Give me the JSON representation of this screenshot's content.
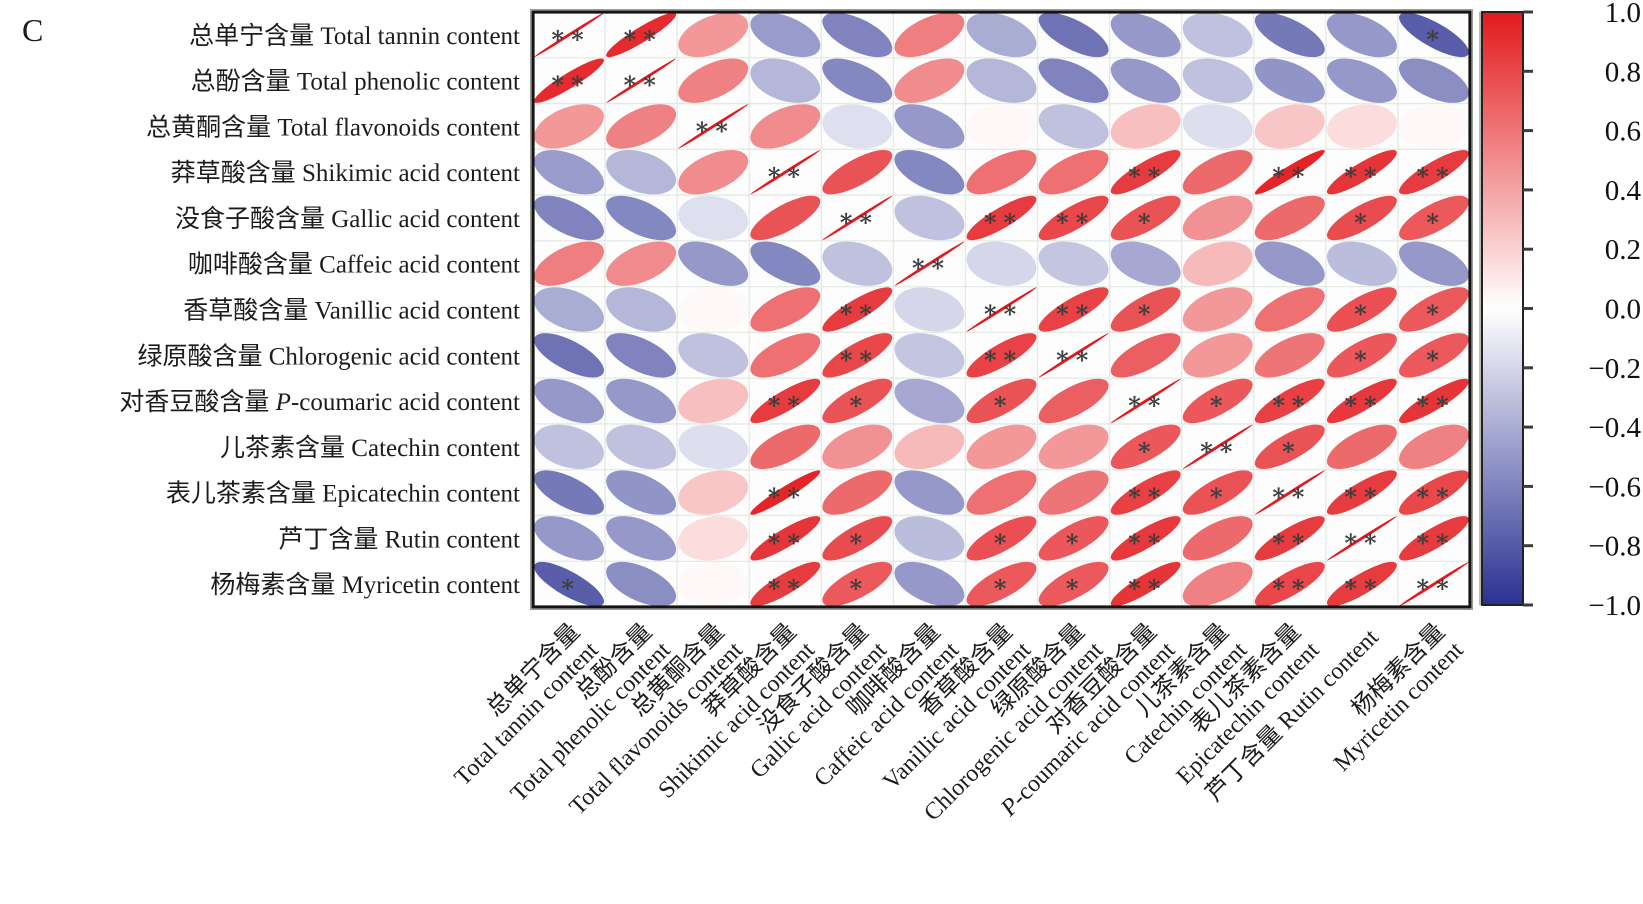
{
  "panel_label": "C",
  "chart_data": {
    "type": "heatmap",
    "subtype": "correlation-ellipse-matrix",
    "title": "",
    "legend_position": "right-colorbar",
    "grid": true,
    "variables": [
      {
        "cn": "总单宁含量",
        "en": "Total tannin content"
      },
      {
        "cn": "总酚含量",
        "en": "Total phenolic content"
      },
      {
        "cn": "总黄酮含量",
        "en": "Total flavonoids content"
      },
      {
        "cn": "莽草酸含量",
        "en": "Shikimic acid content"
      },
      {
        "cn": "没食子酸含量",
        "en": "Gallic acid content"
      },
      {
        "cn": "咖啡酸含量",
        "en": "Caffeic acid content"
      },
      {
        "cn": "香草酸含量",
        "en": "Vanillic acid content"
      },
      {
        "cn": "绿原酸含量",
        "en": "Chlorogenic acid content"
      },
      {
        "cn": "对香豆酸含量",
        "en": "P-coumaric acid content"
      },
      {
        "cn": "儿茶素含量",
        "en": "Catechin content"
      },
      {
        "cn": "表儿茶素含量",
        "en": "Epicatechin content"
      },
      {
        "cn": "芦丁含量",
        "en": "Rutin content",
        "single_line": true
      },
      {
        "cn": "杨梅素含量",
        "en": "Myricetin content"
      }
    ],
    "matrix": [
      [
        1.0,
        0.92,
        0.45,
        -0.48,
        -0.6,
        0.56,
        -0.4,
        -0.68,
        -0.5,
        -0.3,
        -0.65,
        -0.5,
        -0.78
      ],
      [
        0.92,
        1.0,
        0.55,
        -0.35,
        -0.58,
        0.5,
        -0.35,
        -0.6,
        -0.5,
        -0.3,
        -0.52,
        -0.5,
        -0.55
      ],
      [
        0.45,
        0.55,
        1.0,
        0.5,
        -0.15,
        -0.5,
        0.03,
        -0.3,
        0.28,
        -0.16,
        0.25,
        0.15,
        0.03
      ],
      [
        -0.48,
        -0.35,
        0.5,
        1.0,
        0.75,
        -0.58,
        0.62,
        0.62,
        0.85,
        0.65,
        0.95,
        0.88,
        0.85
      ],
      [
        -0.6,
        -0.58,
        -0.15,
        0.75,
        1.0,
        -0.3,
        0.85,
        0.8,
        0.75,
        0.48,
        0.65,
        0.78,
        0.72
      ],
      [
        0.56,
        0.5,
        -0.5,
        -0.58,
        -0.3,
        1.0,
        -0.2,
        -0.28,
        -0.42,
        0.3,
        -0.5,
        -0.32,
        -0.5
      ],
      [
        -0.4,
        -0.35,
        0.03,
        0.62,
        0.85,
        -0.2,
        1.0,
        0.82,
        0.75,
        0.45,
        0.62,
        0.76,
        0.72
      ],
      [
        -0.68,
        -0.6,
        -0.3,
        0.62,
        0.8,
        -0.28,
        0.82,
        1.0,
        0.7,
        0.45,
        0.6,
        0.73,
        0.72
      ],
      [
        -0.5,
        -0.5,
        0.28,
        0.85,
        0.75,
        -0.42,
        0.75,
        0.7,
        1.0,
        0.73,
        0.83,
        0.86,
        0.88
      ],
      [
        -0.3,
        -0.3,
        -0.16,
        0.65,
        0.48,
        0.3,
        0.45,
        0.45,
        0.73,
        1.0,
        0.75,
        0.65,
        0.55
      ],
      [
        -0.65,
        -0.52,
        0.25,
        0.95,
        0.65,
        -0.5,
        0.62,
        0.6,
        0.83,
        0.75,
        1.0,
        0.85,
        0.8
      ],
      [
        -0.5,
        -0.5,
        0.15,
        0.88,
        0.78,
        -0.32,
        0.76,
        0.73,
        0.86,
        0.65,
        0.85,
        1.0,
        0.85
      ],
      [
        -0.78,
        -0.55,
        0.03,
        0.85,
        0.72,
        -0.5,
        0.72,
        0.72,
        0.88,
        0.55,
        0.8,
        0.85,
        1.0
      ]
    ],
    "significance": [
      [
        "**",
        "**",
        "",
        "",
        "",
        "",
        "",
        "",
        "",
        "",
        "",
        "",
        "*"
      ],
      [
        "**",
        "**",
        "",
        "",
        "",
        "",
        "",
        "",
        "",
        "",
        "",
        "",
        ""
      ],
      [
        "",
        "",
        "**",
        "",
        "",
        "",
        "",
        "",
        "",
        "",
        "",
        "",
        ""
      ],
      [
        "",
        "",
        "",
        "**",
        "",
        "",
        "",
        "",
        "**",
        "",
        "**",
        "**",
        "**"
      ],
      [
        "",
        "",
        "",
        "",
        "**",
        "",
        "**",
        "**",
        "*",
        "",
        "",
        "*",
        "*"
      ],
      [
        "",
        "",
        "",
        "",
        "",
        "**",
        "",
        "",
        "",
        "",
        "",
        "",
        ""
      ],
      [
        "",
        "",
        "",
        "",
        "**",
        "",
        "**",
        "**",
        "*",
        "",
        "",
        "*",
        "*"
      ],
      [
        "",
        "",
        "",
        "",
        "**",
        "",
        "**",
        "**",
        "",
        "",
        "",
        "*",
        "*"
      ],
      [
        "",
        "",
        "",
        "**",
        "*",
        "",
        "*",
        "",
        "**",
        "*",
        "**",
        "**",
        "**"
      ],
      [
        "",
        "",
        "",
        "",
        "",
        "",
        "",
        "",
        "*",
        "**",
        "*",
        "",
        ""
      ],
      [
        "",
        "",
        "",
        "**",
        "",
        "",
        "",
        "",
        "**",
        "*",
        "**",
        "**",
        "**"
      ],
      [
        "",
        "",
        "",
        "**",
        "*",
        "",
        "*",
        "*",
        "**",
        "",
        "**",
        "**",
        "**"
      ],
      [
        "*",
        "",
        "",
        "**",
        "*",
        "",
        "*",
        "*",
        "**",
        "",
        "**",
        "**",
        "**"
      ]
    ],
    "colorbar": {
      "min": -1.0,
      "max": 1.0,
      "tick_values": [
        1.0,
        0.8,
        0.6,
        0.4,
        0.2,
        0.0,
        -0.2,
        -0.4,
        -0.6,
        -0.8,
        -1.0
      ],
      "tick_labels": [
        "1.0",
        "0.8",
        "0.6",
        "0.4",
        "0.2",
        "0.0",
        "−0.2",
        "−0.4",
        "−0.6",
        "−0.8",
        "−1.0"
      ]
    },
    "colors": {
      "positive": "#e3191d",
      "negative": "#2b3192",
      "zero": "#ffffff",
      "star": "#3d3d3d",
      "grid": "#e4eae4",
      "frame": "#141414",
      "cell_bg": "#fdfdfd"
    },
    "sig_symbols": {
      "one": "∗",
      "two": "∗∗"
    }
  }
}
